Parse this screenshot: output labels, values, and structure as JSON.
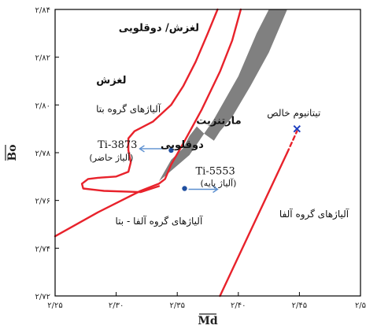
{
  "chart_data": {
    "type": "line",
    "xlabel": "Md",
    "ylabel": "Bo",
    "xlim": [
      2.25,
      2.5
    ],
    "ylim": [
      2.72,
      2.84
    ],
    "x_ticks": [
      {
        "value": 2.25,
        "label": "۲/۲۵"
      },
      {
        "value": 2.3,
        "label": "۲/۳۰"
      },
      {
        "value": 2.35,
        "label": "۲/۳۵"
      },
      {
        "value": 2.4,
        "label": "۲/۴۰"
      },
      {
        "value": 2.45,
        "label": "۲/۴۵"
      },
      {
        "value": 2.5,
        "label": "۲/۵"
      }
    ],
    "y_ticks": [
      {
        "value": 2.72,
        "label": "۲/۷۲"
      },
      {
        "value": 2.74,
        "label": "۲/۷۴"
      },
      {
        "value": 2.76,
        "label": "۲/۷۶"
      },
      {
        "value": 2.78,
        "label": "۲/۷۸"
      },
      {
        "value": 2.8,
        "label": "۲/۸۰"
      },
      {
        "value": 2.82,
        "label": "۲/۸۲"
      },
      {
        "value": 2.84,
        "label": "۲/۸۴"
      }
    ],
    "boundaries": [
      {
        "id": "slip-twin-boundary",
        "color": "#e8222b",
        "points": [
          [
            2.25,
            2.745
          ],
          [
            2.285,
            2.755
          ],
          [
            2.32,
            2.764
          ],
          [
            2.335,
            2.767
          ],
          [
            2.34,
            2.769
          ],
          [
            2.345,
            2.775
          ],
          [
            2.355,
            2.784
          ],
          [
            2.37,
            2.798
          ],
          [
            2.385,
            2.814
          ],
          [
            2.395,
            2.827
          ],
          [
            2.402,
            2.84
          ]
        ]
      },
      {
        "id": "slip-twin-upper-boundary",
        "color": "#e8222b",
        "points": [
          [
            2.383,
            2.84
          ],
          [
            2.375,
            2.83
          ],
          [
            2.365,
            2.818
          ],
          [
            2.355,
            2.808
          ],
          [
            2.345,
            2.8
          ],
          [
            2.33,
            2.793
          ],
          [
            2.315,
            2.789
          ],
          [
            2.31,
            2.786
          ],
          [
            2.31,
            2.781
          ],
          [
            2.312,
            2.776
          ],
          [
            2.31,
            2.772
          ],
          [
            2.3,
            2.77
          ],
          [
            2.285,
            2.7695
          ],
          [
            2.277,
            2.769
          ],
          [
            2.272,
            2.767
          ],
          [
            2.273,
            2.765
          ],
          [
            2.29,
            2.764
          ],
          [
            2.32,
            2.7635
          ],
          [
            2.335,
            2.766
          ]
        ]
      },
      {
        "id": "beta-alpha-boundary-solid",
        "color": "#e8222b",
        "points": [
          [
            2.385,
            2.72
          ],
          [
            2.44,
            2.78
          ]
        ]
      },
      {
        "id": "beta-alpha-boundary-dashed",
        "color": "#e8222b",
        "dashed": true,
        "points": [
          [
            2.44,
            2.78
          ],
          [
            2.448,
            2.789
          ]
        ]
      }
    ],
    "martensite_region": {
      "color": "#808080",
      "points": [
        [
          2.335,
          2.768
        ],
        [
          2.36,
          2.779
        ],
        [
          2.38,
          2.794
        ],
        [
          2.4,
          2.812
        ],
        [
          2.415,
          2.83
        ],
        [
          2.425,
          2.84
        ],
        [
          2.44,
          2.84
        ],
        [
          2.425,
          2.822
        ],
        [
          2.41,
          2.808
        ],
        [
          2.395,
          2.795
        ],
        [
          2.385,
          2.789
        ],
        [
          2.38,
          2.785
        ],
        [
          2.372,
          2.788
        ],
        [
          2.366,
          2.791
        ],
        [
          2.36,
          2.787
        ],
        [
          2.355,
          2.782
        ],
        [
          2.345,
          2.777
        ]
      ]
    },
    "points": [
      {
        "id": "ti-3873",
        "x": 2.345,
        "y": 2.781,
        "color": "#1f4fa0",
        "label": "Ti-3873",
        "sublabel": "(آلیاژ حاضر)"
      },
      {
        "id": "ti-5553",
        "x": 2.356,
        "y": 2.765,
        "color": "#1f4fa0",
        "label": "Ti-5553",
        "sublabel": "(آلیاژ پایه)"
      }
    ],
    "pure_titanium": {
      "x": 2.448,
      "y": 2.79,
      "marker": "x",
      "color": "#1f3fc0",
      "label": "تیتانیوم خالص"
    },
    "annotations": [
      {
        "id": "slip-twin-label",
        "text": "لغزش/ دوقلویی",
        "x": 2.335,
        "y": 2.831,
        "bold": true,
        "size": 13
      },
      {
        "id": "slip-label",
        "text": "لغزش",
        "x": 2.296,
        "y": 2.809,
        "bold": true,
        "size": 13
      },
      {
        "id": "beta-group-label",
        "text": "آلیاژهای گروه بتا",
        "x": 2.31,
        "y": 2.797,
        "bold": false,
        "size": 12
      },
      {
        "id": "martensite-label",
        "text": "مارتنزیت",
        "x": 2.384,
        "y": 2.792,
        "bold": true,
        "size": 13
      },
      {
        "id": "twin-label",
        "text": "دوقلویی",
        "x": 2.354,
        "y": 2.782,
        "bold": true,
        "size": 13
      },
      {
        "id": "alpha-beta-group-label",
        "text": "آلیاژهای گروه آلفا - بتا",
        "x": 2.335,
        "y": 2.75,
        "bold": false,
        "size": 12
      },
      {
        "id": "alpha-group-label",
        "text": "آلیاژهای گروه آلفا",
        "x": 2.462,
        "y": 2.753,
        "bold": false,
        "size": 12
      }
    ]
  }
}
